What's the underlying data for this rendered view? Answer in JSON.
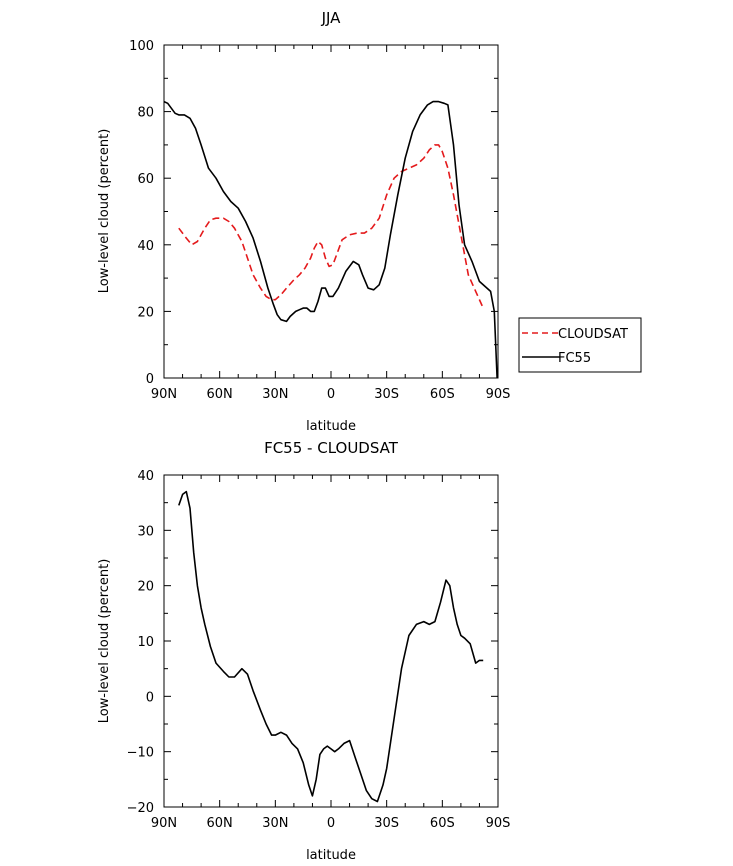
{
  "chart_data": [
    {
      "type": "line",
      "title": "JJA",
      "xlabel": "latitude",
      "ylabel": "Low-level cloud (percent)",
      "xlim": [
        90,
        -90
      ],
      "ylim": [
        0,
        100
      ],
      "xticks": [
        90,
        60,
        30,
        0,
        -30,
        -60,
        -90
      ],
      "xticklabels": [
        "90N",
        "60N",
        "30N",
        "0",
        "30S",
        "60S",
        "90S"
      ],
      "yticks": [
        0,
        20,
        40,
        60,
        80,
        100
      ],
      "yticklabels": [
        "0",
        "20",
        "40",
        "60",
        "80",
        "100"
      ],
      "legend_position": "right",
      "series": [
        {
          "name": "CLOUDSAT",
          "color": "#e41a1c",
          "dash": "dashed",
          "x": [
            82,
            78,
            75,
            72,
            68,
            65,
            62,
            58,
            55,
            52,
            48,
            45,
            42,
            38,
            35,
            32,
            30,
            27,
            24,
            20,
            17,
            14,
            11,
            9,
            7,
            5,
            3,
            1,
            -1,
            -3,
            -6,
            -10,
            -14,
            -18,
            -22,
            -26,
            -30,
            -34,
            -38,
            -42,
            -46,
            -50,
            -53,
            -56,
            -58,
            -60,
            -63,
            -66,
            -70,
            -74,
            -78,
            -82
          ],
          "y": [
            45,
            42,
            40,
            41,
            45,
            47.5,
            48,
            48,
            47,
            45,
            41,
            36,
            31,
            27,
            24.5,
            23.5,
            23.5,
            25,
            27,
            29.5,
            31,
            33,
            36,
            39,
            41,
            40,
            36,
            33.5,
            34,
            37,
            41.5,
            43,
            43.5,
            43.5,
            45,
            48,
            55,
            60,
            62,
            63,
            64,
            66,
            68.5,
            70,
            70,
            68,
            63,
            55,
            43,
            31,
            26,
            21
          ]
        },
        {
          "name": "FC55",
          "color": "#000000",
          "dash": "solid",
          "x": [
            90,
            88,
            86,
            84,
            82,
            79,
            76,
            73,
            70,
            66,
            62,
            58,
            54,
            50,
            46,
            42,
            38,
            34,
            31,
            29,
            27,
            24,
            22,
            19,
            17,
            15,
            13,
            11,
            9,
            7,
            5,
            3,
            1,
            -1,
            -4,
            -8,
            -12,
            -15,
            -17,
            -20,
            -23,
            -26,
            -29,
            -32,
            -36,
            -40,
            -44,
            -48,
            -52,
            -55,
            -58,
            -61,
            -63,
            -66,
            -69,
            -72,
            -76,
            -80,
            -83,
            -86,
            -88,
            -89.5
          ],
          "y": [
            83,
            82.5,
            81,
            79.5,
            79,
            79,
            78,
            75,
            70,
            63,
            60,
            56,
            53,
            51,
            47,
            42,
            35,
            27,
            22,
            19,
            17.5,
            17,
            18.5,
            20,
            20.5,
            21,
            21,
            20,
            20,
            23,
            27,
            27,
            24.5,
            24.5,
            27,
            32,
            35,
            34,
            31,
            27,
            26.5,
            28,
            33,
            43,
            55,
            66,
            74,
            79,
            82,
            83,
            83,
            82.5,
            82,
            70,
            52,
            40,
            35,
            29,
            27.5,
            26,
            20,
            0
          ]
        }
      ]
    },
    {
      "type": "line",
      "title": "FC55 - CLOUDSAT",
      "xlabel": "latitude",
      "ylabel": "Low-level cloud (percent)",
      "xlim": [
        90,
        -90
      ],
      "ylim": [
        -20,
        40
      ],
      "xticks": [
        90,
        60,
        30,
        0,
        -30,
        -60,
        -90
      ],
      "xticklabels": [
        "90N",
        "60N",
        "30N",
        "0",
        "30S",
        "60S",
        "90S"
      ],
      "yticks": [
        -20,
        -10,
        0,
        10,
        20,
        30,
        40
      ],
      "yticklabels": [
        "−20",
        "−10",
        "0",
        "10",
        "20",
        "30",
        "40"
      ],
      "series": [
        {
          "color": "#000000",
          "dash": "solid",
          "x": [
            82,
            80,
            78,
            76,
            74,
            72,
            70,
            68,
            65,
            62,
            58,
            55,
            52,
            48,
            45,
            42,
            38,
            35,
            32,
            30,
            27,
            24,
            21,
            18,
            15,
            12,
            10,
            8,
            6,
            4,
            2,
            0,
            -2,
            -4,
            -7,
            -10,
            -13,
            -16,
            -19,
            -22,
            -25,
            -28,
            -30,
            -34,
            -38,
            -42,
            -46,
            -50,
            -53,
            -56,
            -59,
            -62,
            -64,
            -66,
            -68,
            -70,
            -72,
            -75,
            -78,
            -80,
            -82
          ],
          "y": [
            34.5,
            36.5,
            37,
            34,
            26,
            20,
            16,
            13,
            9,
            6,
            4.5,
            3.5,
            3.5,
            5,
            4,
            1,
            -2.5,
            -5,
            -7,
            -7,
            -6.5,
            -7,
            -8.5,
            -9.5,
            -12,
            -16,
            -18,
            -15,
            -10.5,
            -9.5,
            -9,
            -9.5,
            -10,
            -9.5,
            -8.5,
            -8,
            -11,
            -14,
            -17,
            -18.5,
            -19,
            -16,
            -13,
            -4,
            5,
            11,
            13,
            13.5,
            13,
            13.5,
            17,
            21,
            20,
            16,
            13,
            11,
            10.5,
            9.5,
            6,
            6.5,
            6.5
          ]
        }
      ]
    }
  ]
}
